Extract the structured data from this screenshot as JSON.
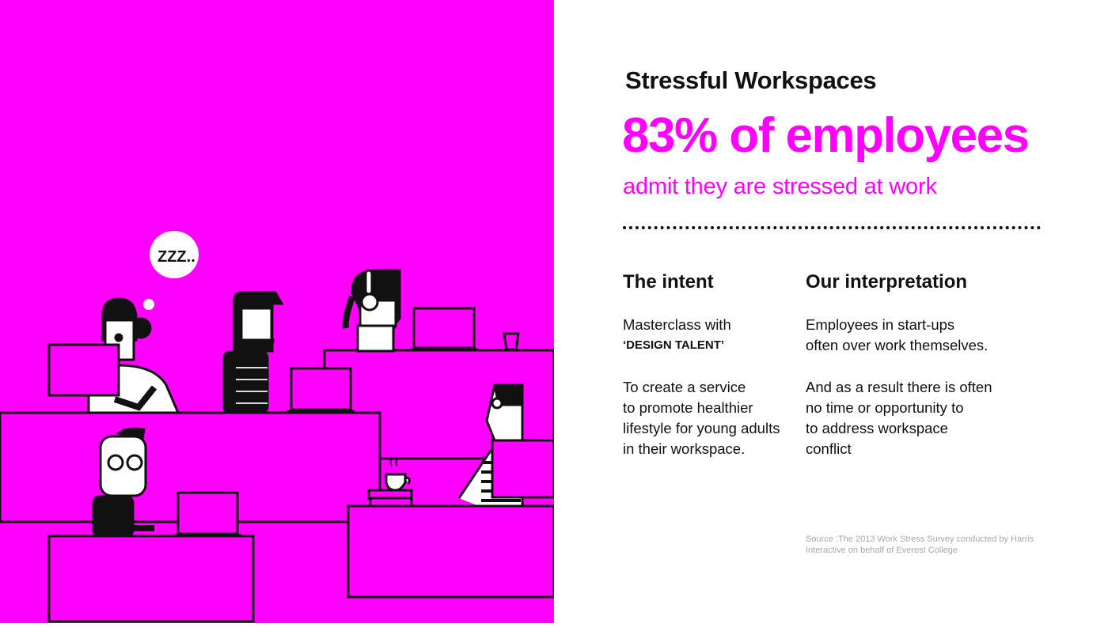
{
  "illustration": {
    "speech_bubble": "ZZZ..",
    "background_color": "#ff00ff"
  },
  "title": "Stressful Workspaces",
  "headline": "83% of employees",
  "subheadline": "admit they are stressed at work",
  "accent_color": "#ff00ff",
  "intent": {
    "heading": "The intent",
    "p1_line1": "Masterclass with",
    "p1_line2": "‘DESIGN TALENT’",
    "p2_lines": [
      "To create a service",
      "to promote healthier",
      "lifestyle for young adults",
      "in their workspace."
    ]
  },
  "interpretation": {
    "heading": "Our interpretation",
    "p1_lines": [
      "Employees in start-ups",
      "often over work themselves."
    ],
    "p2_lines": [
      "And as a result there is often",
      "no time or opportunity to",
      "to address workspace",
      "conflict"
    ]
  },
  "source": {
    "line1": "Source :The 2013 Work Stress Survey conducted by Harris",
    "line2": "Interactive on behalf of Everest College"
  }
}
